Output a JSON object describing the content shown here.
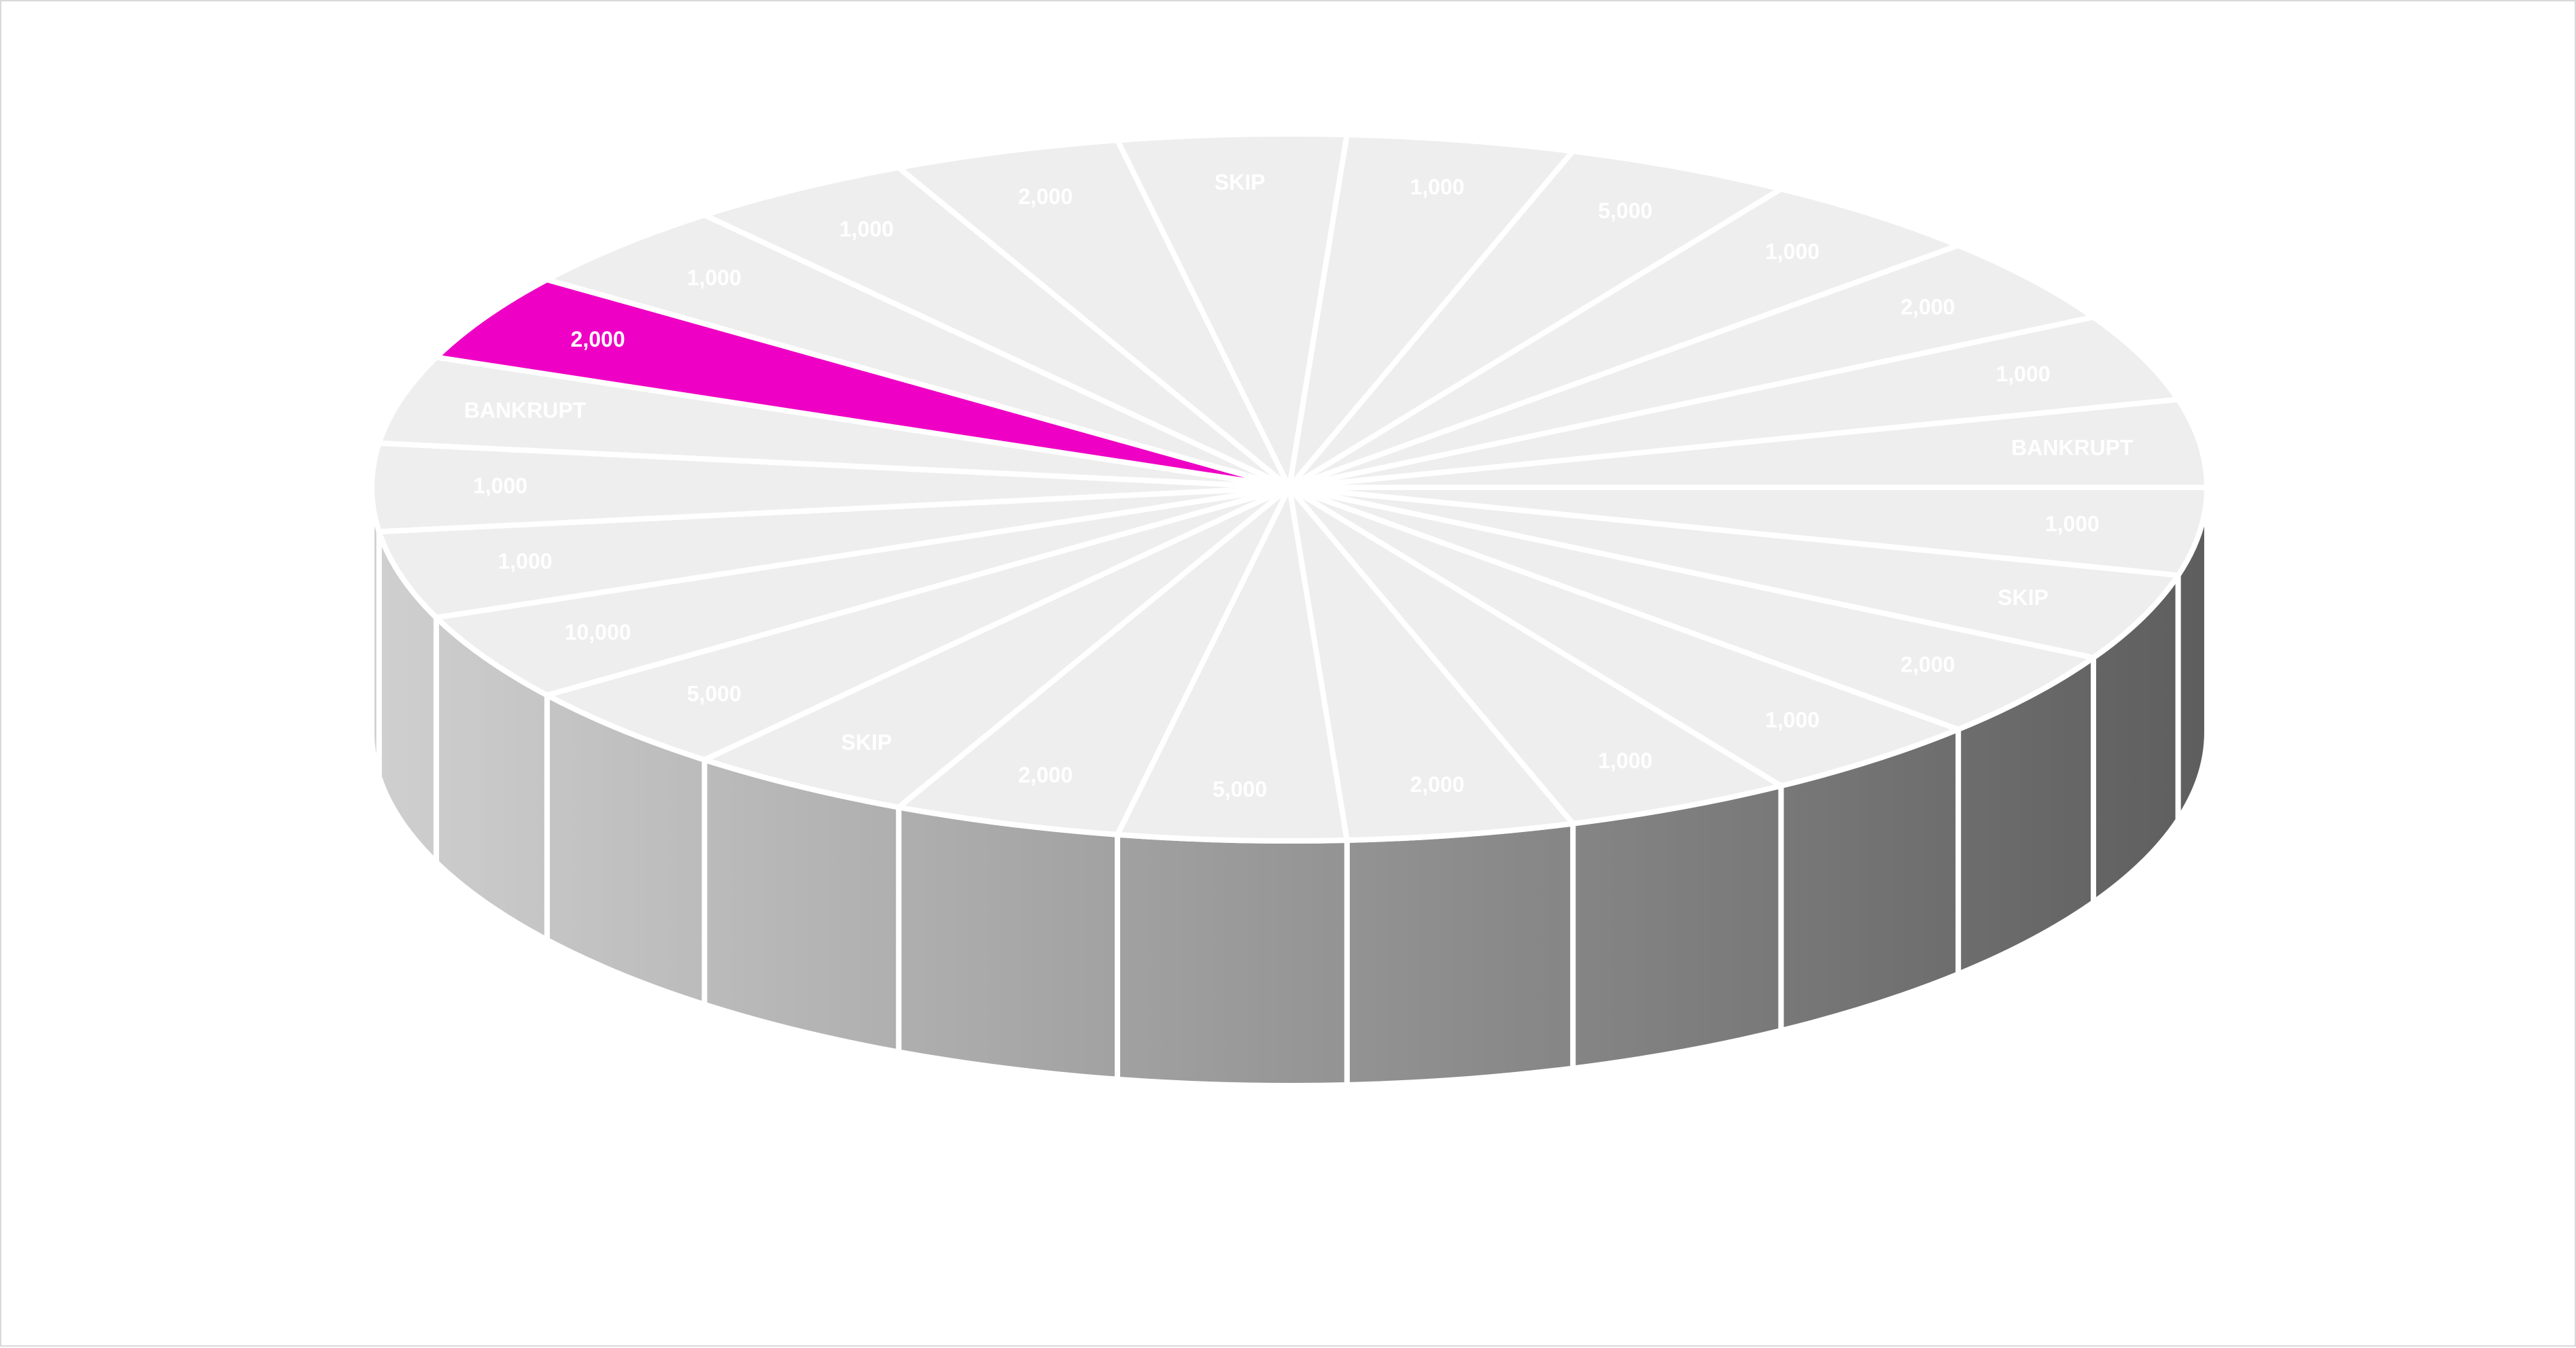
{
  "chart_data": {
    "type": "pie",
    "style": "3d-wheel",
    "slices": [
      {
        "label": "1,000",
        "value": 1
      },
      {
        "label": "SKIP",
        "value": 1
      },
      {
        "label": "2,000",
        "value": 1
      },
      {
        "label": "1,000",
        "value": 1
      },
      {
        "label": "1,000",
        "value": 1
      },
      {
        "label": "2,000",
        "value": 1
      },
      {
        "label": "5,000",
        "value": 1
      },
      {
        "label": "2,000",
        "value": 1
      },
      {
        "label": "SKIP",
        "value": 1
      },
      {
        "label": "5,000",
        "value": 1
      },
      {
        "label": "10,000",
        "value": 1
      },
      {
        "label": "1,000",
        "value": 1
      },
      {
        "label": "1,000",
        "value": 1
      },
      {
        "label": "BANKRUPT",
        "value": 1
      },
      {
        "label": "2,000",
        "value": 1
      },
      {
        "label": "1,000",
        "value": 1
      },
      {
        "label": "1,000",
        "value": 1
      },
      {
        "label": "2,000",
        "value": 1
      },
      {
        "label": "SKIP",
        "value": 1
      },
      {
        "label": "1,000",
        "value": 1
      },
      {
        "label": "5,000",
        "value": 1
      },
      {
        "label": "1,000",
        "value": 1
      },
      {
        "label": "2,000",
        "value": 1
      },
      {
        "label": "1,000",
        "value": 1
      },
      {
        "label": "BANKRUPT",
        "value": 1
      }
    ],
    "highlighted_index": 14,
    "colors": {
      "top": "#eeeeee",
      "highlight": "#ee00c4",
      "highlight_side": "#b0009a",
      "divider": "#ffffff",
      "side_light": "#cfcfcf",
      "side_dark": "#5e5e5e",
      "label": "#ffffff",
      "background": "#ffffff",
      "frame": "#d9d9d9"
    }
  }
}
